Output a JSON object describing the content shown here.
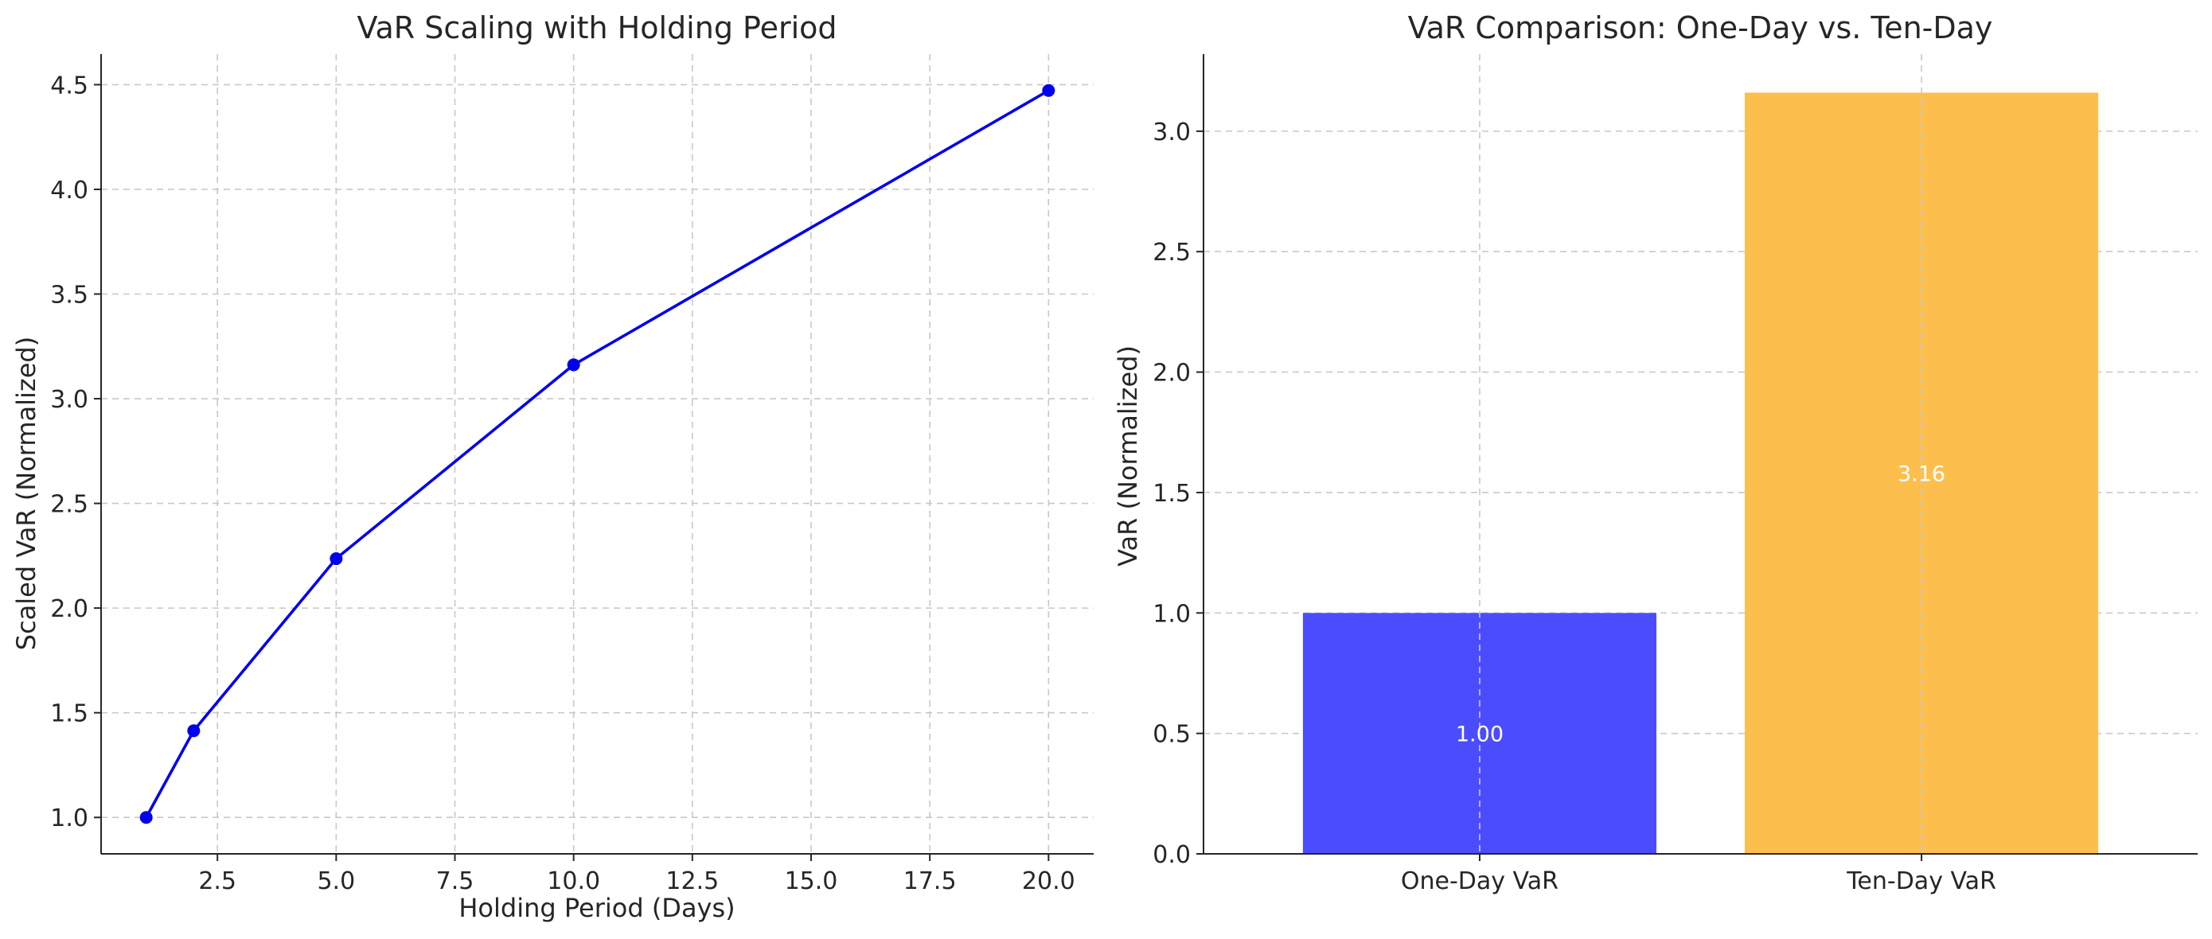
{
  "chart_data": [
    {
      "type": "line",
      "title": "VaR Scaling with Holding Period",
      "xlabel": "Holding Period (Days)",
      "ylabel": "Scaled VaR (Normalized)",
      "x": [
        1,
        2,
        5,
        10,
        20
      ],
      "series": [
        {
          "values": [
            1.0,
            1.414,
            2.236,
            3.162,
            4.472
          ],
          "color": "#0000ee",
          "marker": "circle"
        }
      ],
      "xlim": [
        0.05,
        20.95
      ],
      "ylim": [
        0.826,
        4.646
      ],
      "xticks": [
        2.5,
        5.0,
        7.5,
        10.0,
        12.5,
        15.0,
        17.5,
        20.0
      ],
      "xtick_labels": [
        "2.5",
        "5.0",
        "7.5",
        "10.0",
        "12.5",
        "15.0",
        "17.5",
        "20.0"
      ],
      "yticks": [
        1.0,
        1.5,
        2.0,
        2.5,
        3.0,
        3.5,
        4.0,
        4.5
      ],
      "ytick_labels": [
        "1.0",
        "1.5",
        "2.0",
        "2.5",
        "3.0",
        "3.5",
        "4.0",
        "4.5"
      ],
      "grid": true,
      "legend": "none"
    },
    {
      "type": "bar",
      "title": "VaR Comparison: One-Day vs. Ten-Day",
      "xlabel": "",
      "ylabel": "VaR (Normalized)",
      "categories": [
        "One-Day VaR",
        "Ten-Day VaR"
      ],
      "values": [
        1.0,
        3.16
      ],
      "value_labels": [
        "1.00",
        "3.16"
      ],
      "colors": [
        "#4c4cff",
        "#fcbf4e"
      ],
      "ylim": [
        0,
        3.32
      ],
      "yticks": [
        0.0,
        0.5,
        1.0,
        1.5,
        2.0,
        2.5,
        3.0
      ],
      "ytick_labels": [
        "0.0",
        "0.5",
        "1.0",
        "1.5",
        "2.0",
        "2.5",
        "3.0"
      ],
      "grid": true,
      "legend": "none"
    }
  ]
}
